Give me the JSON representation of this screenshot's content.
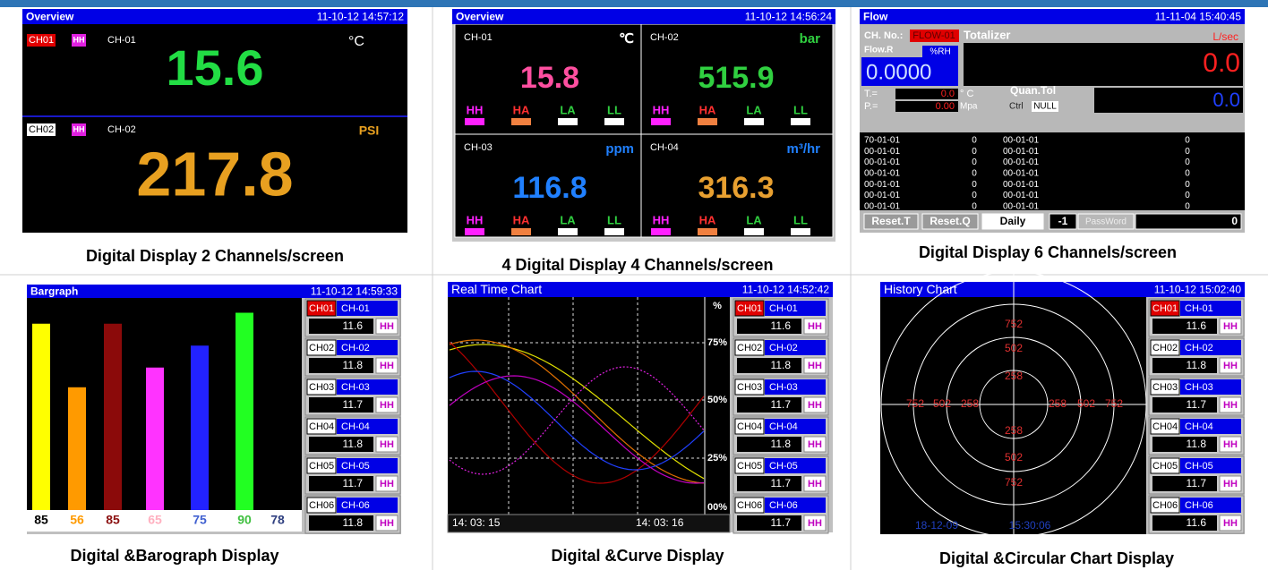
{
  "panels": [
    {
      "caption": "Digital Display 2 Channels/screen",
      "header": {
        "title": "Overview",
        "time": "11-10-12 14:57:12"
      },
      "channels": [
        {
          "tag": "CH01",
          "alarm": "HH",
          "name": "CH-01",
          "unit": "°C",
          "value": "15.6"
        },
        {
          "tag": "CH02",
          "alarm": "HH",
          "name": "CH-02",
          "unit": "PSI",
          "value": "217.8"
        }
      ]
    },
    {
      "caption": "4 Digital Display 4 Channels/screen",
      "header": {
        "title": "Overview",
        "time": "11-10-12 14:56:24"
      },
      "alarm_labels": [
        "HH",
        "HA",
        "LA",
        "LL"
      ],
      "channels": [
        {
          "name": "CH-01",
          "unit": "℃",
          "value": "15.8"
        },
        {
          "name": "CH-02",
          "unit": "bar",
          "value": "515.9"
        },
        {
          "name": "CH-03",
          "unit": "ppm",
          "value": "116.8"
        },
        {
          "name": "CH-04",
          "unit": "m³/hr",
          "value": "316.3"
        }
      ]
    },
    {
      "caption": "Digital Display 6 Channels/screen",
      "header": {
        "title": "Flow",
        "time": "11-11-04 15:40:45"
      },
      "fields": {
        "ch_no": "CH. No.:",
        "ch_id": "FLOW-01",
        "totalizer": "Totalizer",
        "total_unit": "L/sec",
        "total_value": "0.0",
        "flow": "Flow.R",
        "flow_unit": "%RH",
        "flow_value": "0.0000",
        "t_label": "T.=",
        "t_value": "0.0",
        "t_unit": "° C",
        "quan": "Quan.Tol",
        "quan_value": "0.0",
        "p_label": "P.=",
        "p_value": "0.00",
        "p_unit": "Mpa",
        "ctrl": "Ctrl",
        "ctrl_value": "NULL"
      },
      "table": [
        [
          "70-01-01",
          "0",
          "00-01-01",
          "0"
        ],
        [
          "00-01-01",
          "0",
          "00-01-01",
          "0"
        ],
        [
          "00-01-01",
          "0",
          "00-01-01",
          "0"
        ],
        [
          "00-01-01",
          "0",
          "00-01-01",
          "0"
        ],
        [
          "00-01-01",
          "0",
          "00-01-01",
          "0"
        ],
        [
          "00-01-01",
          "0",
          "00-01-01",
          "0"
        ],
        [
          "00-01-01",
          "0",
          "00-01-01",
          "0"
        ]
      ],
      "buttons": [
        "Reset.T",
        "Reset.Q",
        "Daily",
        "-1",
        "PassWord",
        "0"
      ]
    },
    {
      "caption": "Digital &Barograph Display",
      "header": {
        "title": "Bargraph",
        "time": "11-10-12 14:59:33"
      },
      "bars": {
        "values": [
          85,
          56,
          85,
          65,
          75,
          90,
          78
        ],
        "colors": [
          "#ffff00",
          "#ff9a00",
          "#8b0a0a",
          "#ff33ff",
          "#2222ff",
          "#22ff22"
        ],
        "label_colors": [
          "#000000",
          "#ff9a00",
          "#8b1010",
          "#ffb0c0",
          "#4060d0",
          "#40c040",
          "#304080"
        ]
      },
      "channels": [
        {
          "tag": "CH01",
          "name": "CH-01",
          "value": "11.6",
          "alarm": "HH"
        },
        {
          "tag": "CH02",
          "name": "CH-02",
          "value": "11.8",
          "alarm": "HH"
        },
        {
          "tag": "CH03",
          "name": "CH-03",
          "value": "11.7",
          "alarm": "HH"
        },
        {
          "tag": "CH04",
          "name": "CH-04",
          "value": "11.8",
          "alarm": "HH"
        },
        {
          "tag": "CH05",
          "name": "CH-05",
          "value": "11.7",
          "alarm": "HH"
        },
        {
          "tag": "CH06",
          "name": "CH-06",
          "value": "11.8",
          "alarm": "HH"
        }
      ]
    },
    {
      "caption": "Digital &Curve Display",
      "header": {
        "title": "Real Time Chart",
        "time": "11-10-12 14:52:42"
      },
      "axis_labels": [
        "%",
        "75%",
        "50%",
        "25%",
        "00%"
      ],
      "times": [
        "14: 03: 15",
        "14: 03: 16"
      ],
      "channels": [
        {
          "tag": "CH01",
          "name": "CH-01",
          "value": "11.6",
          "alarm": "HH"
        },
        {
          "tag": "CH02",
          "name": "CH-02",
          "value": "11.8",
          "alarm": "HH"
        },
        {
          "tag": "CH03",
          "name": "CH-03",
          "value": "11.7",
          "alarm": "HH"
        },
        {
          "tag": "CH04",
          "name": "CH-04",
          "value": "11.8",
          "alarm": "HH"
        },
        {
          "tag": "CH05",
          "name": "CH-05",
          "value": "11.7",
          "alarm": "HH"
        },
        {
          "tag": "CH06",
          "name": "CH-06",
          "value": "11.7",
          "alarm": "HH"
        }
      ]
    },
    {
      "caption": "Digital &Circular Chart Display",
      "header": {
        "title": "History Chart",
        "time": "11-10-12 15:02:40"
      },
      "ring_labels": {
        "top": [
          "752",
          "502",
          "258"
        ],
        "left": [
          "752",
          "502",
          "258"
        ],
        "right": [
          "258",
          "502",
          "752"
        ],
        "bottom": [
          "258",
          "502",
          "752"
        ]
      },
      "footer": [
        "18-12-09",
        "15:30:06"
      ],
      "channels": [
        {
          "tag": "CH01",
          "name": "CH-01",
          "value": "11.6",
          "alarm": "HH"
        },
        {
          "tag": "CH02",
          "name": "CH-02",
          "value": "11.8",
          "alarm": "HH"
        },
        {
          "tag": "CH03",
          "name": "CH-03",
          "value": "11.7",
          "alarm": "HH"
        },
        {
          "tag": "CH04",
          "name": "CH-04",
          "value": "11.8",
          "alarm": "HH"
        },
        {
          "tag": "CH05",
          "name": "CH-05",
          "value": "11.7",
          "alarm": "HH"
        },
        {
          "tag": "CH06",
          "name": "CH-06",
          "value": "11.6",
          "alarm": "HH"
        }
      ]
    }
  ]
}
